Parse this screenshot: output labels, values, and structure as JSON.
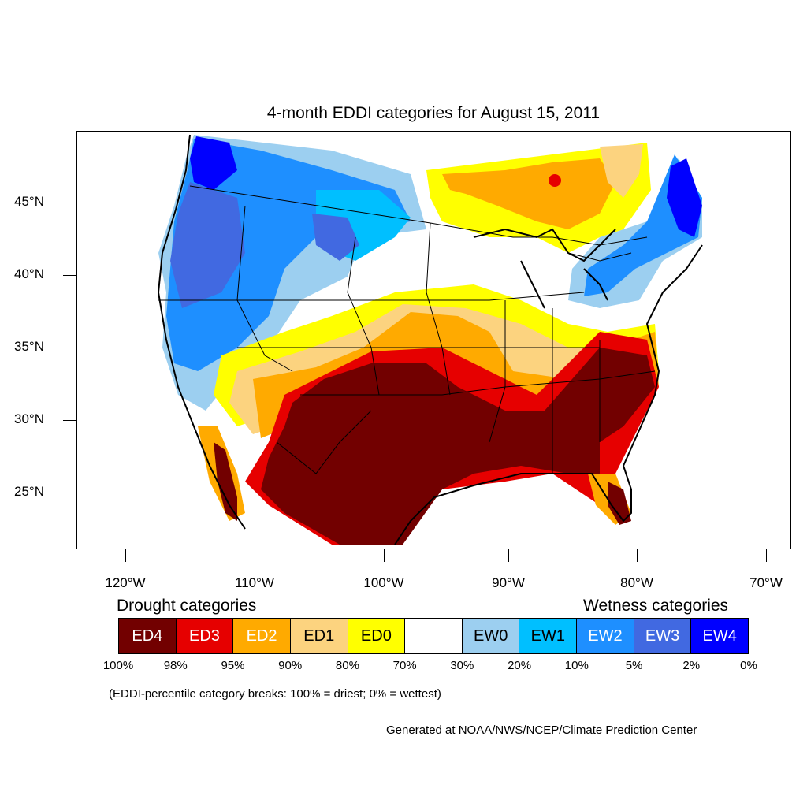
{
  "title": "4-month EDDI categories for August 15, 2011",
  "map": {
    "region": "Contiguous United States",
    "lat_labels": [
      "45°N",
      "40°N",
      "35°N",
      "30°N",
      "25°N"
    ],
    "lon_labels": [
      "120°W",
      "110°W",
      "100°W",
      "90°W",
      "80°W",
      "70°W"
    ]
  },
  "legend": {
    "drought_title": "Drought categories",
    "wetness_title": "Wetness categories",
    "categories": [
      {
        "label": "ED4",
        "color": "#720000",
        "text_color": "#ffffff"
      },
      {
        "label": "ED3",
        "color": "#e60000",
        "text_color": "#ffffff"
      },
      {
        "label": "ED2",
        "color": "#ffaa00",
        "text_color": "#ffffff"
      },
      {
        "label": "ED1",
        "color": "#fcd37f",
        "text_color": "#000000"
      },
      {
        "label": "ED0",
        "color": "#ffff00",
        "text_color": "#000000"
      },
      {
        "label": "",
        "color": "#ffffff",
        "text_color": "#000000"
      },
      {
        "label": "EW0",
        "color": "#9ccff0",
        "text_color": "#000000"
      },
      {
        "label": "EW1",
        "color": "#00bfff",
        "text_color": "#000000"
      },
      {
        "label": "EW2",
        "color": "#1e8fff",
        "text_color": "#ffffff"
      },
      {
        "label": "EW3",
        "color": "#4169e1",
        "text_color": "#ffffff"
      },
      {
        "label": "EW4",
        "color": "#0000ff",
        "text_color": "#ffffff"
      }
    ],
    "breaks": [
      "100%",
      "98%",
      "95%",
      "90%",
      "80%",
      "70%",
      "30%",
      "20%",
      "10%",
      "5%",
      "2%",
      "0%"
    ]
  },
  "note": "(EDDI-percentile category breaks: 100% = driest; 0% = wettest)",
  "credit": "Generated at NOAA/NWS/NCEP/Climate Prediction Center"
}
